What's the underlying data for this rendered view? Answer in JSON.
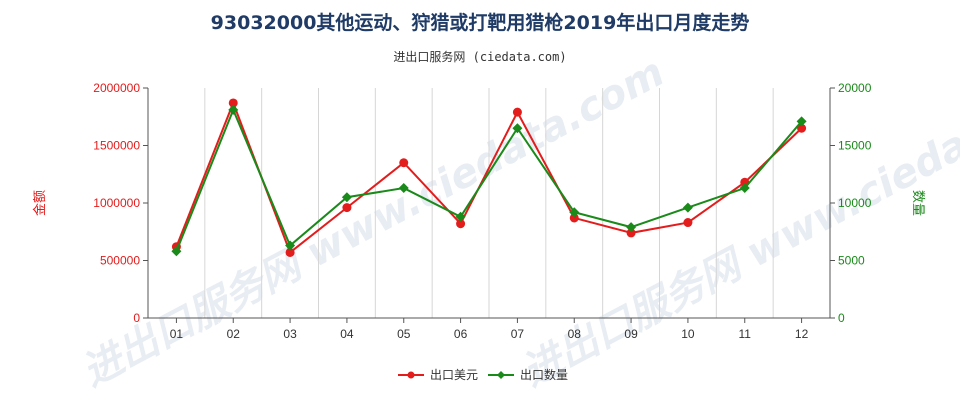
{
  "title": "93032000其他运动、狩猎或打靶用猎枪2019年出口月度走势",
  "subtitle": "进出口服务网 (ciedata.com)",
  "watermark": "进出口服务网 www.ciedata.com",
  "colors": {
    "series_value": "#e31c1c",
    "series_qty": "#1a8a1a",
    "left_axis": "#e31c1c",
    "right_axis": "#1a8a1a"
  },
  "chart_data": {
    "type": "line",
    "categories": [
      "01",
      "02",
      "03",
      "04",
      "05",
      "06",
      "07",
      "08",
      "09",
      "10",
      "11",
      "12"
    ],
    "series": [
      {
        "name": "出口美元",
        "axis": "left",
        "color": "#e31c1c",
        "marker": "circle",
        "values": [
          620000,
          1870000,
          570000,
          960000,
          1350000,
          820000,
          1790000,
          870000,
          740000,
          830000,
          1180000,
          1650000
        ]
      },
      {
        "name": "出口数量",
        "axis": "right",
        "color": "#1a8a1a",
        "marker": "diamond",
        "values": [
          5800,
          18100,
          6300,
          10500,
          11300,
          8800,
          16500,
          9200,
          7900,
          9600,
          11300,
          17100
        ]
      }
    ],
    "y_left": {
      "label": "金额",
      "min": 0,
      "max": 2000000,
      "ticks": [
        "0",
        "500000",
        "1000000",
        "1500000",
        "2000000"
      ]
    },
    "y_right": {
      "label": "数量",
      "min": 0,
      "max": 20000,
      "ticks": [
        "0",
        "5000",
        "10000",
        "15000",
        "20000"
      ]
    },
    "grid": "vertical",
    "legend_position": "bottom-center"
  }
}
